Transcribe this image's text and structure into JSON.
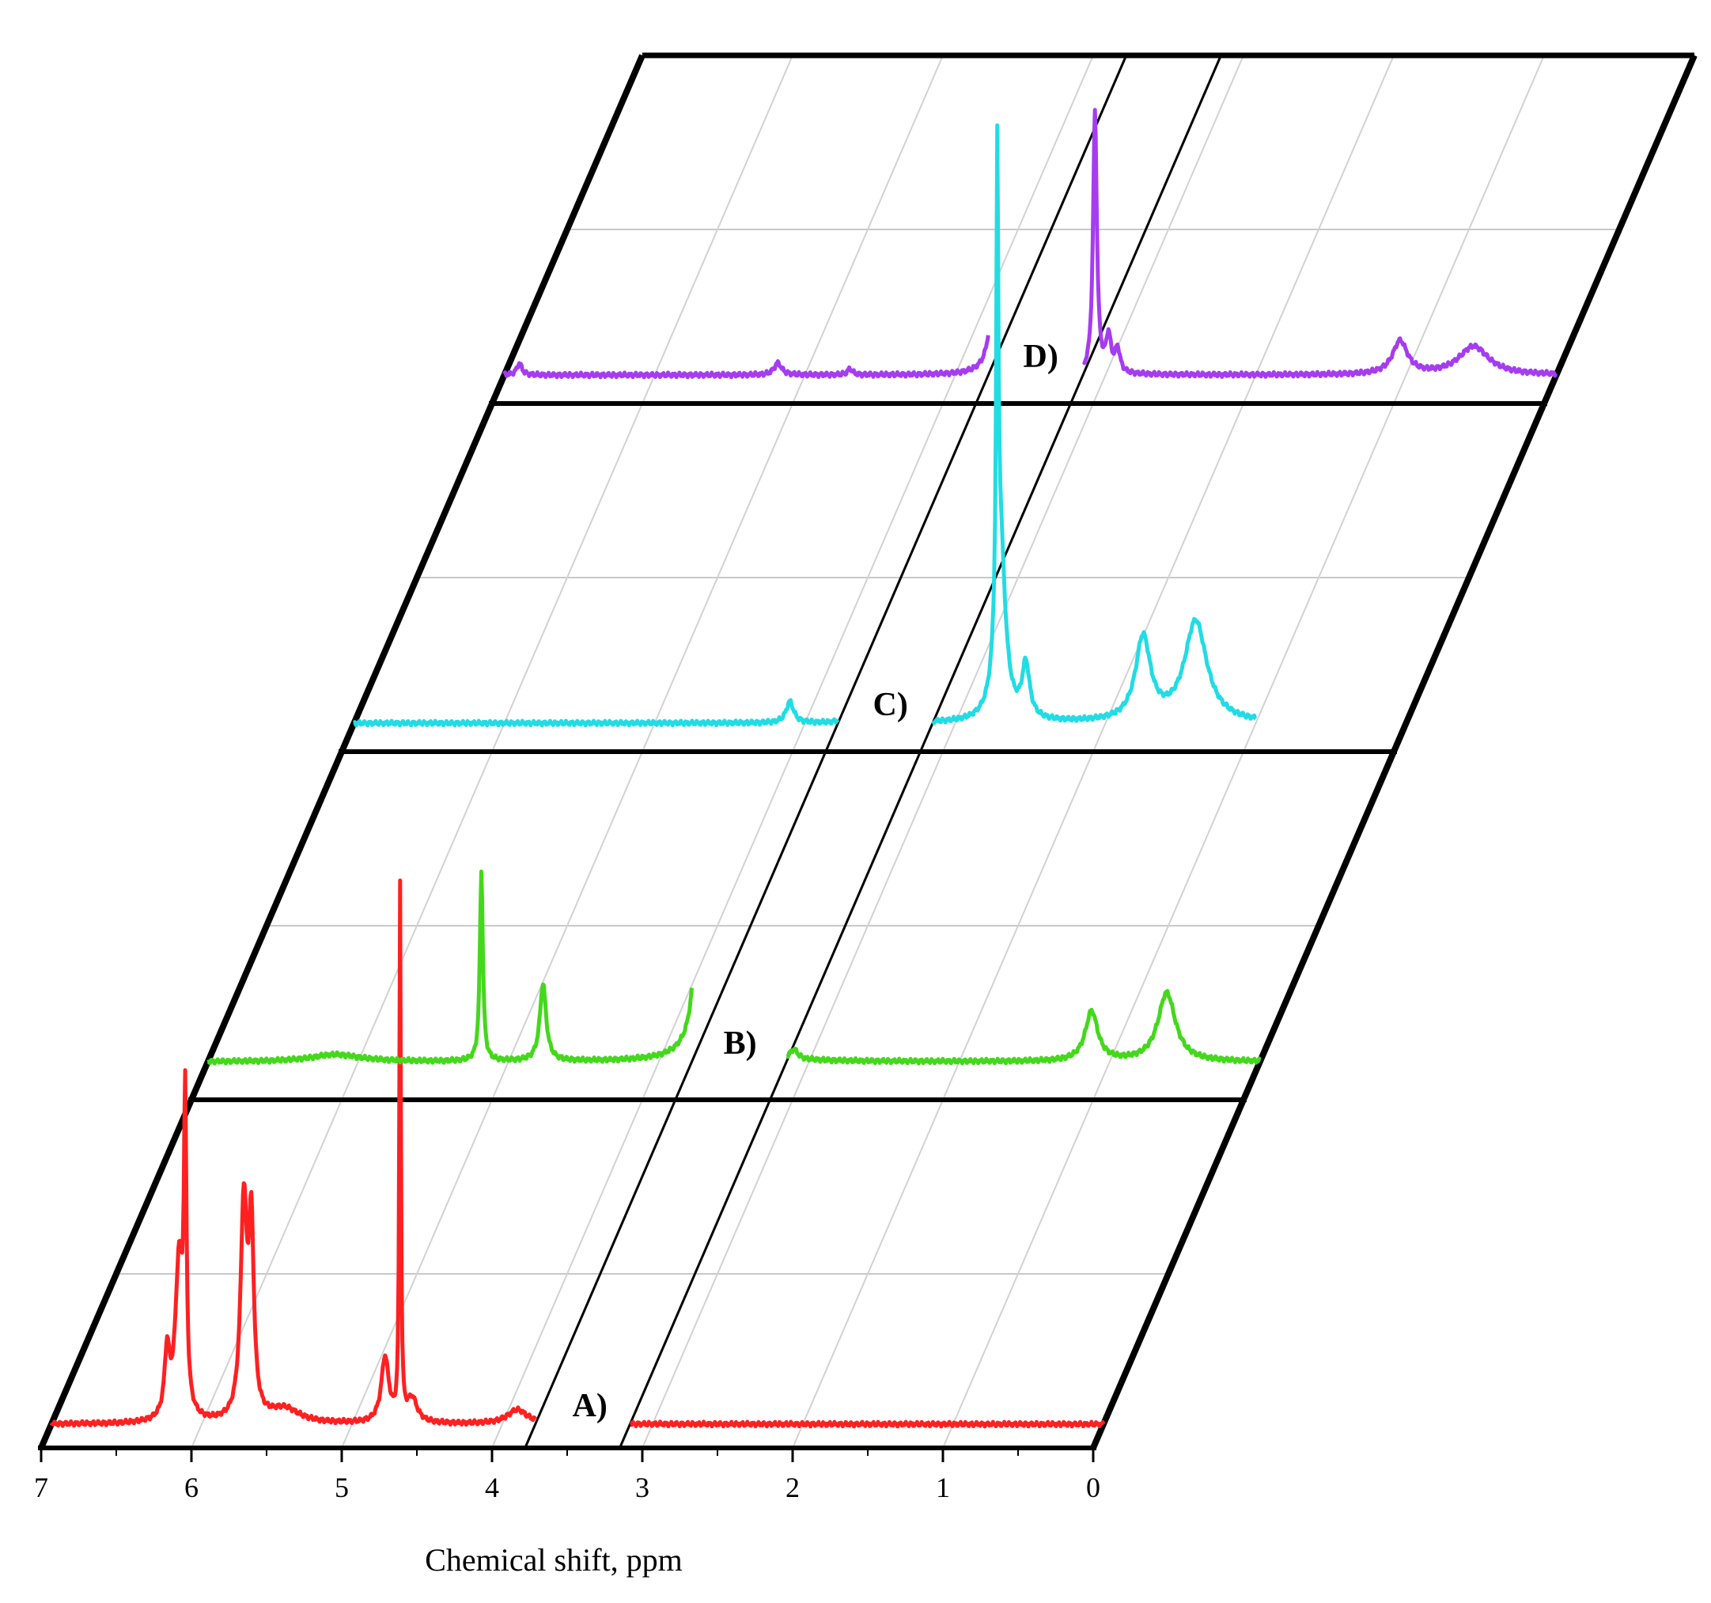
{
  "chart_data": {
    "type": "line",
    "subtype": "stacked-nmr-spectra",
    "title": "",
    "xlabel": "Chemical shift, ppm",
    "ylabel": "",
    "xlim": [
      7,
      0
    ],
    "x_ticks": [
      "7",
      "6",
      "5",
      "4",
      "3",
      "2",
      "1",
      "0"
    ],
    "x_reversed": true,
    "axis_break": [
      3.15,
      3.78
    ],
    "grid": true,
    "series": [
      {
        "name": "A)",
        "color": "#ff2020",
        "baseline_level": 0.2,
        "x_range": [
          7.0,
          0.0
        ],
        "peaks": [
          {
            "x": 6.23,
            "h": 0.55,
            "w": 0.02
          },
          {
            "x": 6.15,
            "h": 1.35,
            "w": 0.03
          },
          {
            "x": 6.11,
            "h": 2.45,
            "w": 0.01
          },
          {
            "x": 5.72,
            "h": 1.8,
            "w": 0.025
          },
          {
            "x": 5.67,
            "h": 1.55,
            "w": 0.02
          },
          {
            "x": 5.45,
            "h": 0.12,
            "w": 0.12
          },
          {
            "x": 4.78,
            "h": 0.55,
            "w": 0.03
          },
          {
            "x": 4.68,
            "h": 4.5,
            "w": 0.006
          },
          {
            "x": 4.6,
            "h": 0.2,
            "w": 0.04
          },
          {
            "x": 3.9,
            "h": 0.12,
            "w": 0.08
          }
        ]
      },
      {
        "name": "B)",
        "color": "#44d81c",
        "baseline_level": 0.32,
        "x_range": [
          7.0,
          0.0
        ],
        "peaks": [
          {
            "x": 6.15,
            "h": 0.06,
            "w": 0.2
          },
          {
            "x": 5.18,
            "h": 1.6,
            "w": 0.012
          },
          {
            "x": 4.77,
            "h": 0.65,
            "w": 0.025
          },
          {
            "x": 3.72,
            "h": 4.2,
            "w": 0.02
          },
          {
            "x": 3.62,
            "h": 1.6,
            "w": 0.06
          },
          {
            "x": 3.1,
            "h": 0.08,
            "w": 0.03
          },
          {
            "x": 1.12,
            "h": 0.42,
            "w": 0.05
          },
          {
            "x": 0.62,
            "h": 0.58,
            "w": 0.07
          }
        ]
      },
      {
        "name": "C)",
        "color": "#22dce4",
        "baseline_level": 0.24,
        "x_range": [
          7.0,
          1.0
        ],
        "peaks": [
          {
            "x": 4.1,
            "h": 0.18,
            "w": 0.03
          },
          {
            "x": 3.75,
            "h": 0.12,
            "w": 0.015
          },
          {
            "x": 3.63,
            "h": 0.35,
            "w": 0.015
          },
          {
            "x": 2.72,
            "h": 3.8,
            "w": 0.008
          },
          {
            "x": 2.7,
            "h": 1.5,
            "w": 0.04
          },
          {
            "x": 2.53,
            "h": 0.45,
            "w": 0.03
          },
          {
            "x": 1.75,
            "h": 0.7,
            "w": 0.06
          },
          {
            "x": 1.4,
            "h": 0.85,
            "w": 0.09
          }
        ]
      },
      {
        "name": "D)",
        "color": "#a63cf0",
        "baseline_level": 0.24,
        "x_range": [
          7.0,
          0.0
        ],
        "peaks": [
          {
            "x": 6.9,
            "h": 0.1,
            "w": 0.02
          },
          {
            "x": 5.18,
            "h": 0.1,
            "w": 0.03
          },
          {
            "x": 4.7,
            "h": 0.05,
            "w": 0.02
          },
          {
            "x": 3.72,
            "h": 3.3,
            "w": 0.02
          },
          {
            "x": 3.62,
            "h": 0.55,
            "w": 0.03
          },
          {
            "x": 3.07,
            "h": 2.2,
            "w": 0.015
          },
          {
            "x": 2.98,
            "h": 0.3,
            "w": 0.02
          },
          {
            "x": 2.92,
            "h": 0.2,
            "w": 0.02
          },
          {
            "x": 1.04,
            "h": 0.28,
            "w": 0.06
          },
          {
            "x": 0.55,
            "h": 0.24,
            "w": 0.12
          }
        ]
      }
    ]
  }
}
